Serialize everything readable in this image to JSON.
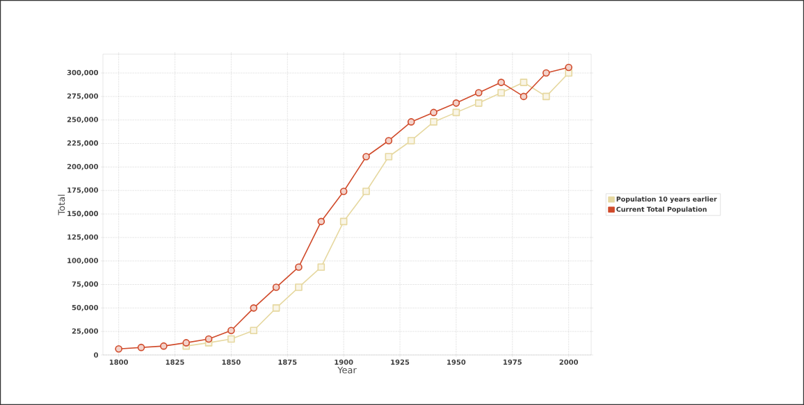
{
  "chart_data": {
    "type": "line",
    "xlabel": "Year",
    "ylabel": "Total",
    "x": [
      1800,
      1810,
      1820,
      1830,
      1840,
      1850,
      1860,
      1870,
      1880,
      1890,
      1900,
      1910,
      1920,
      1930,
      1940,
      1950,
      1960,
      1970,
      1980,
      1990,
      2000
    ],
    "series": [
      {
        "name": "Population 10 years earlier",
        "color": "#e6d8a0",
        "marker": "square",
        "values": [
          null,
          null,
          null,
          9500,
          13000,
          17000,
          26000,
          50000,
          72000,
          93500,
          142000,
          174000,
          211000,
          228000,
          248000,
          258000,
          268000,
          279000,
          290000,
          275000,
          300000
        ]
      },
      {
        "name": "Current Total Population",
        "color": "#d04a2a",
        "marker": "circle",
        "values": [
          6500,
          8000,
          9500,
          13000,
          17000,
          26000,
          50000,
          72000,
          93500,
          142000,
          174000,
          211000,
          228000,
          248000,
          258000,
          268000,
          279000,
          290000,
          275000,
          300000,
          306000
        ]
      }
    ],
    "xlim": [
      1793,
      2010
    ],
    "ylim": [
      0,
      320000
    ],
    "xticks": [
      1800,
      1825,
      1850,
      1875,
      1900,
      1925,
      1950,
      1975,
      2000
    ],
    "yticks": [
      {
        "value": 0,
        "label": "0"
      },
      {
        "value": 25000,
        "label": "25,000"
      },
      {
        "value": 50000,
        "label": "50,000"
      },
      {
        "value": 75000,
        "label": "75,000"
      },
      {
        "value": 100000,
        "label": "100,000"
      },
      {
        "value": 125000,
        "label": "125,000"
      },
      {
        "value": 150000,
        "label": "150,000"
      },
      {
        "value": 175000,
        "label": "175,000"
      },
      {
        "value": 200000,
        "label": "200,000"
      },
      {
        "value": 225000,
        "label": "225,000"
      },
      {
        "value": 250000,
        "label": "250,000"
      },
      {
        "value": 275000,
        "label": "275,000"
      },
      {
        "value": 300000,
        "label": "300,000"
      }
    ],
    "grid": true,
    "legend": "right",
    "line_style": "solid"
  }
}
